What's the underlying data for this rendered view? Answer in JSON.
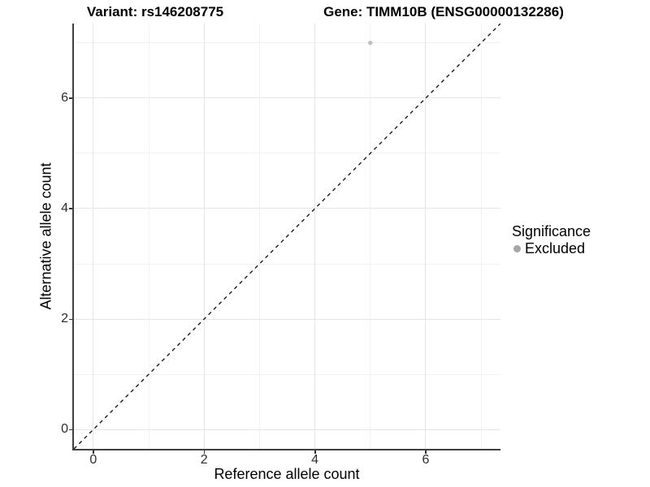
{
  "chart_data": {
    "type": "scatter",
    "titles": {
      "variant": "Variant: rs146208775",
      "gene": "Gene: TIMM10B (ENSG00000132286)"
    },
    "xlabel": "Reference allele count",
    "ylabel": "Alternative allele count",
    "x_ticks": [
      0,
      2,
      4,
      6
    ],
    "x_minor_ticks": [
      1,
      3,
      5,
      7
    ],
    "y_ticks": [
      0,
      2,
      4,
      6
    ],
    "y_minor_ticks": [
      1,
      3,
      5,
      7
    ],
    "xlim": [
      -0.35,
      7.35
    ],
    "ylim": [
      -0.35,
      7.35
    ],
    "grid": "major-and-minor",
    "identity_line": {
      "slope": 1,
      "intercept": 0,
      "style": "dashed",
      "color": "#1a1a1a"
    },
    "series": [
      {
        "name": "Excluded",
        "color": "#bfbfbf",
        "points": [
          {
            "x": 5,
            "y": 7
          }
        ]
      }
    ],
    "legend": {
      "title": "Significance",
      "position": "right",
      "entries": [
        {
          "label": "Excluded",
          "dot_color": "#a6a6a6"
        }
      ]
    }
  },
  "colors": {
    "grid_major": "#e6e6e6",
    "grid_minor": "#f2f2f2",
    "axis_line": "#404040",
    "background": "#ffffff"
  }
}
